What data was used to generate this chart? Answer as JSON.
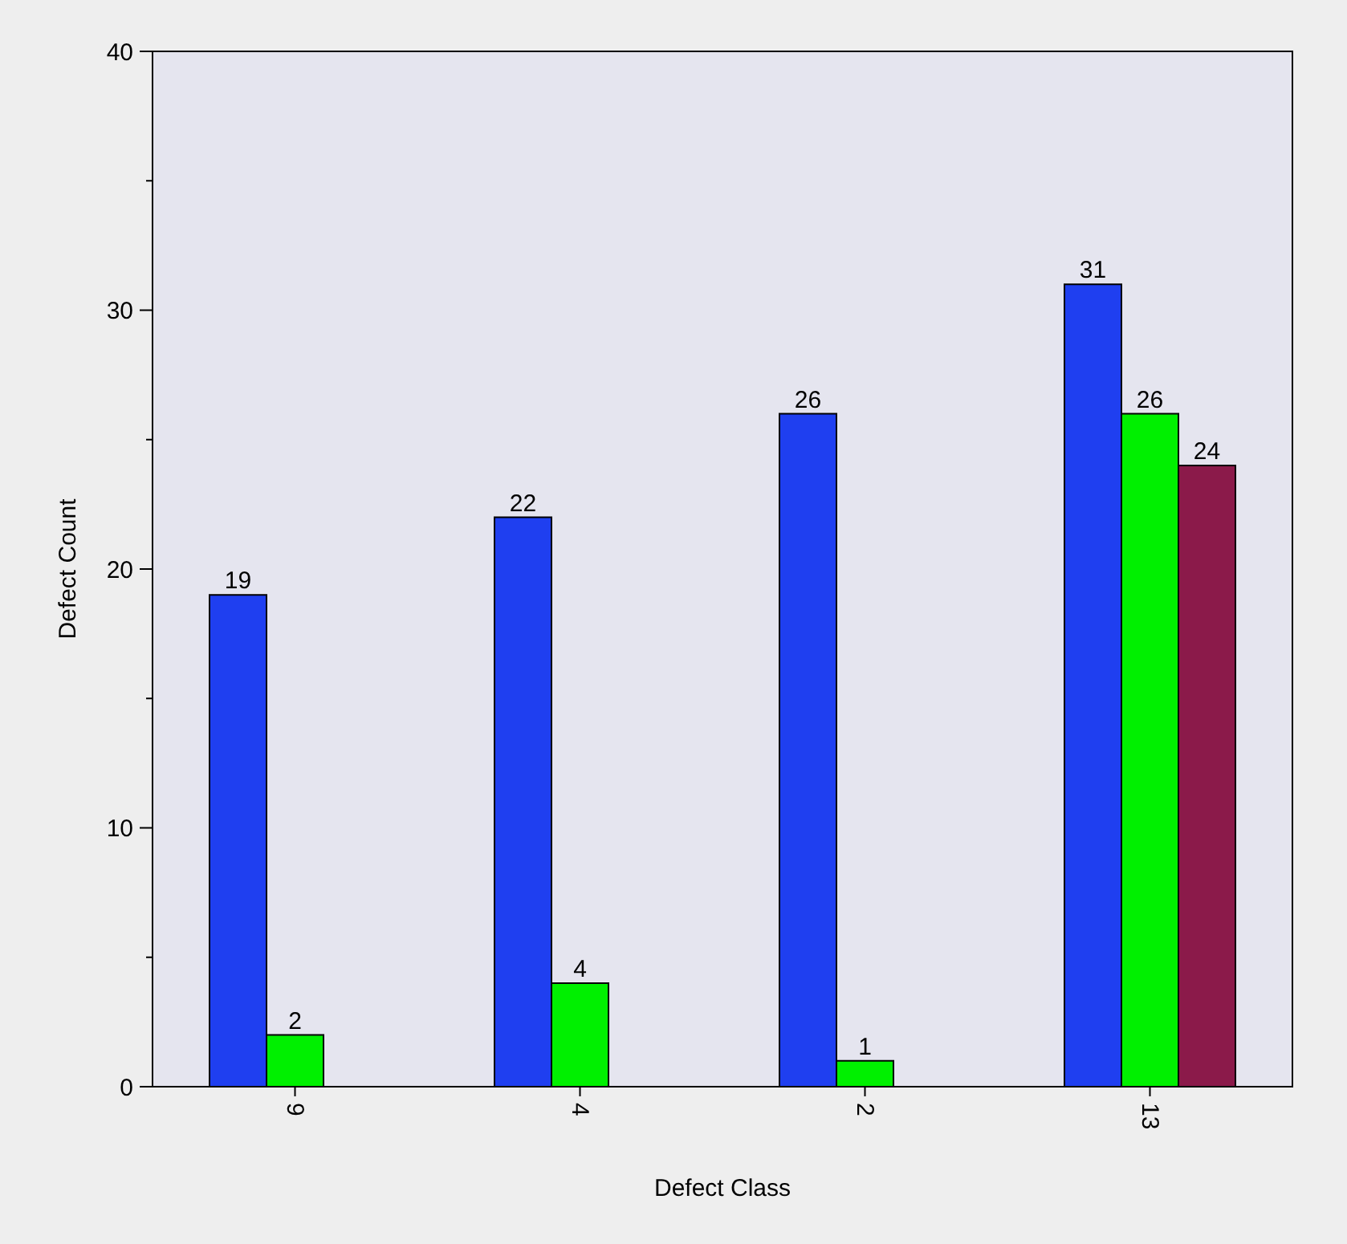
{
  "chart_data": {
    "type": "bar",
    "xlabel": "Defect Class",
    "ylabel": "Defect Count",
    "categories": [
      "9",
      "4",
      "2",
      "13"
    ],
    "series": [
      {
        "color": "#1f3ff0",
        "values": [
          19,
          22,
          26,
          31
        ]
      },
      {
        "color": "#00f000",
        "values": [
          2,
          4,
          1,
          26
        ]
      },
      {
        "color": "#8b1a4a",
        "values": [
          null,
          null,
          null,
          24
        ]
      }
    ],
    "ylim": [
      0,
      40
    ],
    "yticks": [
      0,
      {
        "value": 5,
        "label": null
      },
      10,
      {
        "value": 15,
        "label": null
      },
      20,
      {
        "value": 25,
        "label": null
      },
      30,
      {
        "value": 35,
        "label": null
      },
      40
    ],
    "data_labels": true,
    "grid": false
  }
}
